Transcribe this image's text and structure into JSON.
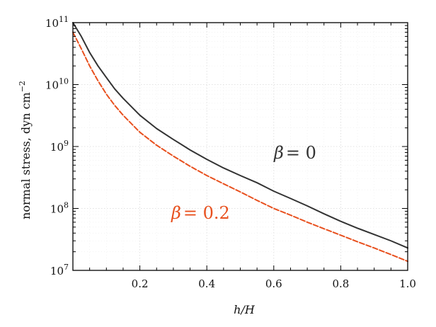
{
  "chart_data": {
    "type": "line",
    "ylog": true,
    "xlim": [
      0.0,
      1.0
    ],
    "ylim": [
      10000000,
      100000000000
    ],
    "xlabel_main": "h/H",
    "ylabel_prefix": "normal stress, dyn cm",
    "ylabel_exp": "−2",
    "xticks": [
      {
        "value": 0.2,
        "label": "0.2"
      },
      {
        "value": 0.4,
        "label": "0.4"
      },
      {
        "value": 0.6,
        "label": "0.6"
      },
      {
        "value": 0.8,
        "label": "0.8"
      },
      {
        "value": 1.0,
        "label": "1.0"
      }
    ],
    "yticks": [
      {
        "value": 10000000,
        "base": "10",
        "exp": "7"
      },
      {
        "value": 100000000,
        "base": "10",
        "exp": "8"
      },
      {
        "value": 1000000000,
        "base": "10",
        "exp": "9"
      },
      {
        "value": 10000000000,
        "base": "10",
        "exp": "10"
      },
      {
        "value": 100000000000,
        "base": "10",
        "exp": "11"
      }
    ],
    "grid": true,
    "series": [
      {
        "annotation_symbol": "β",
        "annotation_value": "= 0",
        "color": "#333333",
        "dash": false,
        "points": [
          [
            0.0,
            100000000000.0
          ],
          [
            0.025,
            60000000000.0
          ],
          [
            0.05,
            33000000000.0
          ],
          [
            0.075,
            20000000000.0
          ],
          [
            0.1,
            13000000000.0
          ],
          [
            0.125,
            8500000000.0
          ],
          [
            0.15,
            6000000000.0
          ],
          [
            0.2,
            3200000000.0
          ],
          [
            0.25,
            1950000000.0
          ],
          [
            0.3,
            1300000000.0
          ],
          [
            0.35,
            880000000.0
          ],
          [
            0.4,
            620000000.0
          ],
          [
            0.45,
            450000000.0
          ],
          [
            0.5,
            340000000.0
          ],
          [
            0.55,
            260000000.0
          ],
          [
            0.6,
            190000000.0
          ],
          [
            0.65,
            145000000.0
          ],
          [
            0.7,
            110000000.0
          ],
          [
            0.75,
            82000000.0
          ],
          [
            0.8,
            62000000.0
          ],
          [
            0.85,
            48000000.0
          ],
          [
            0.9,
            38000000.0
          ],
          [
            0.95,
            30000000.0
          ],
          [
            1.0,
            23000000.0
          ]
        ]
      },
      {
        "annotation_symbol": "β",
        "annotation_value": "= 0.2",
        "color": "#e8501e",
        "dash": true,
        "points": [
          [
            0.0,
            70000000000.0
          ],
          [
            0.025,
            38000000000.0
          ],
          [
            0.05,
            20000000000.0
          ],
          [
            0.075,
            11500000000.0
          ],
          [
            0.1,
            7000000000.0
          ],
          [
            0.125,
            4600000000.0
          ],
          [
            0.15,
            3200000000.0
          ],
          [
            0.2,
            1700000000.0
          ],
          [
            0.25,
            1050000000.0
          ],
          [
            0.3,
            700000000.0
          ],
          [
            0.35,
            480000000.0
          ],
          [
            0.4,
            340000000.0
          ],
          [
            0.45,
            250000000.0
          ],
          [
            0.5,
            185000000.0
          ],
          [
            0.55,
            135000000.0
          ],
          [
            0.6,
            100000000.0
          ],
          [
            0.65,
            78000000.0
          ],
          [
            0.7,
            60000000.0
          ],
          [
            0.75,
            47000000.0
          ],
          [
            0.8,
            37000000.0
          ],
          [
            0.85,
            29000000.0
          ],
          [
            0.9,
            23000000.0
          ],
          [
            0.95,
            18000000.0
          ],
          [
            1.0,
            14000000.0
          ]
        ]
      }
    ]
  }
}
